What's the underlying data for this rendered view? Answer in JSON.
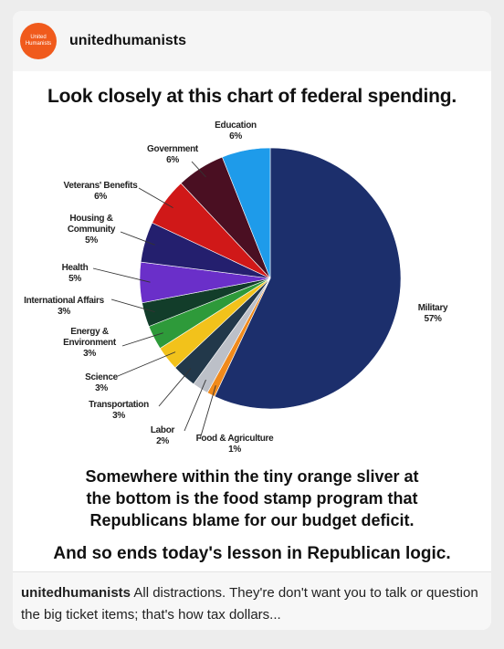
{
  "post": {
    "avatar_text": "United Humanists",
    "username": "unitedhumanists"
  },
  "chart_data": {
    "type": "pie",
    "title": "Look closely at this chart of federal spending.",
    "categories": [
      "Military",
      "Food & Agriculture",
      "Labor",
      "Transportation",
      "Science",
      "Energy & Environment",
      "International Affairs",
      "Health",
      "Housing & Community",
      "Veterans' Benefits",
      "Government",
      "Education"
    ],
    "values": [
      57,
      1,
      2,
      3,
      3,
      3,
      3,
      5,
      5,
      6,
      6,
      6
    ],
    "value_labels": [
      "57%",
      "1%",
      "2%",
      "3%",
      "3%",
      "3%",
      "3%",
      "5%",
      "5%",
      "6%",
      "6%",
      "6%"
    ],
    "colors": [
      "#1c2f6c",
      "#f08a1c",
      "#bcc0c8",
      "#22384a",
      "#f2c21b",
      "#2e9a3a",
      "#123d2a",
      "#6a2fc9",
      "#241f6e",
      "#d01818",
      "#4a0f22",
      "#1e9bea"
    ],
    "notes": [
      "Somewhere within the tiny orange sliver at the bottom is the food stamp program that Republicans blame for our budget deficit.",
      "And so ends today's lesson in Republican logic."
    ]
  },
  "caption": {
    "username": "unitedhumanists",
    "text": "All distractions. They're don't want you to talk or question the big ticket items; that's how tax dollars..."
  }
}
